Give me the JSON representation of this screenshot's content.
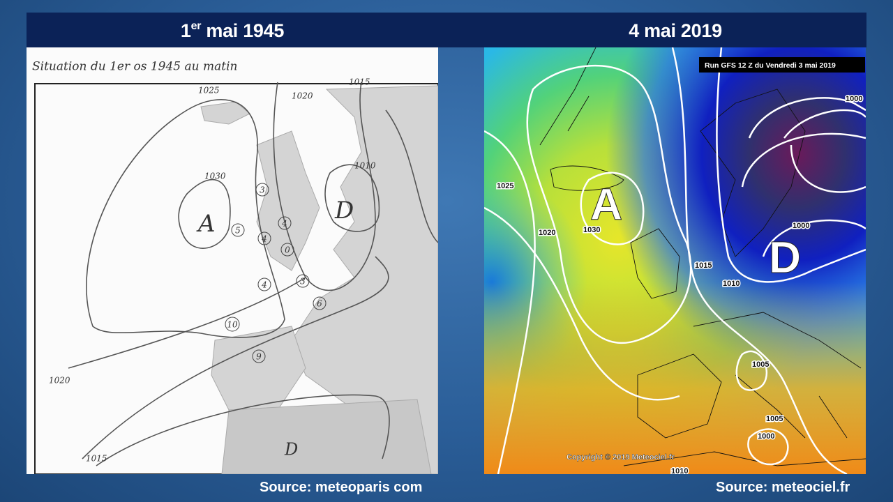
{
  "header": {
    "left": {
      "day": "1",
      "sup": "er",
      "rest": "mai 1945"
    },
    "right": "4 mai 2019"
  },
  "left_map": {
    "note": "Situation du 1er os 1945 au matin",
    "isobars": [
      "1025",
      "1020",
      "1030",
      "1010",
      "1015",
      "1020",
      "1015"
    ],
    "centers": [
      "A",
      "D",
      "D"
    ],
    "stations": [
      "3",
      "5",
      "4",
      "4",
      "0",
      "4",
      "3",
      "6",
      "10",
      "9"
    ],
    "source": "Source: meteoparis com"
  },
  "right_map": {
    "run": "Run GFS 12 Z du Vendredi 3 mai 2019",
    "isobars": [
      "1025",
      "1020",
      "1030",
      "1015",
      "1010",
      "1000",
      "1000",
      "1005",
      "1005",
      "1000",
      "1010"
    ],
    "centers": [
      "A",
      "D"
    ],
    "copyright": "Copyright © 2019 Meteociel.fr",
    "source": "Source: meteociel.fr"
  }
}
